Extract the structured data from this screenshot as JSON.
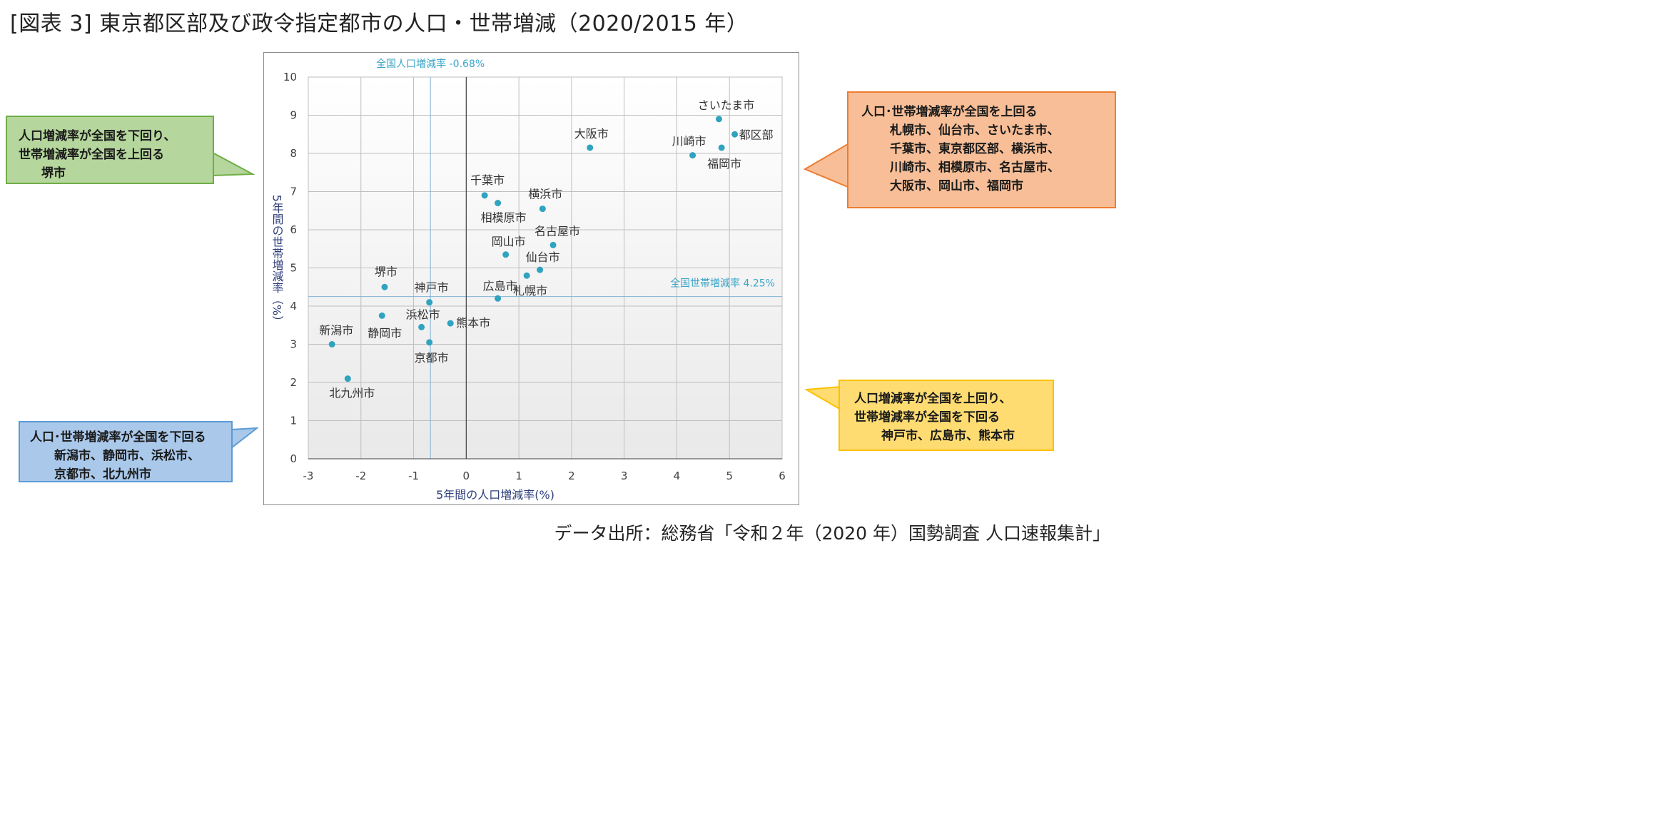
{
  "title": "[図表 3] 東京都区部及び政令指定都市の人口・世帯増減（2020/2015 年）",
  "source": "データ出所：総務省「令和２年（2020 年）国勢調査 人口速報集計」",
  "colors": {
    "marker": "#2fa3c0",
    "refline": "#7fb4d6",
    "reflabel": "#3aa5c8",
    "grid": "#bfbfbf",
    "axis": "#404040",
    "axis_title": "#2e3e7a"
  },
  "callouts": {
    "green": [
      "人口増減率が全国を下回り、",
      "世帯増減率が全国を上回る",
      "堺市"
    ],
    "orange": [
      "人口･世帯増減率が全国を上回る",
      "札幌市、仙台市、さいたま市、",
      "千葉市、東京都区部、横浜市、",
      "川崎市、相模原市、名古屋市、",
      "大阪市、岡山市、福岡市"
    ],
    "blue": [
      "人口･世帯増減率が全国を下回る",
      "新潟市、静岡市、浜松市、",
      "京都市、北九州市"
    ],
    "yellow": [
      "人口増減率が全国を上回り、",
      "世帯増減率が全国を下回る",
      "神戸市、広島市、熊本市"
    ]
  },
  "chart_data": {
    "type": "scatter",
    "title": "",
    "xlabel": "5年間の人口増減率(%)",
    "ylabel": "5年間の世帯増減率（%）",
    "xlim": [
      -3,
      6
    ],
    "ylim": [
      0,
      10
    ],
    "x_ticks": [
      "-3",
      "-2",
      "-1",
      "0",
      "1",
      "2",
      "3",
      "4",
      "5",
      "6"
    ],
    "y_ticks": [
      "0",
      "1",
      "2",
      "3",
      "4",
      "5",
      "6",
      "7",
      "8",
      "9",
      "10"
    ],
    "grid": true,
    "reference_lines": {
      "x": {
        "value": -0.68,
        "label": "全国人口増減率 -0.68%"
      },
      "y": {
        "value": 4.25,
        "label": "全国世帯増減率 4.25%"
      }
    },
    "points": [
      {
        "name": "さいたま市",
        "x": 4.8,
        "y": 8.9
      },
      {
        "name": "都区部",
        "x": 5.1,
        "y": 8.5
      },
      {
        "name": "川崎市",
        "x": 4.3,
        "y": 7.95
      },
      {
        "name": "福岡市",
        "x": 4.85,
        "y": 8.15
      },
      {
        "name": "大阪市",
        "x": 2.35,
        "y": 8.15
      },
      {
        "name": "千葉市",
        "x": 0.35,
        "y": 6.9
      },
      {
        "name": "相模原市",
        "x": 0.6,
        "y": 6.7
      },
      {
        "name": "横浜市",
        "x": 1.45,
        "y": 6.55
      },
      {
        "name": "名古屋市",
        "x": 1.65,
        "y": 5.6
      },
      {
        "name": "岡山市",
        "x": 0.75,
        "y": 5.35
      },
      {
        "name": "仙台市",
        "x": 1.4,
        "y": 4.95
      },
      {
        "name": "札幌市",
        "x": 1.15,
        "y": 4.8
      },
      {
        "name": "広島市",
        "x": 0.6,
        "y": 4.2
      },
      {
        "name": "堺市",
        "x": -1.55,
        "y": 4.5
      },
      {
        "name": "神戸市",
        "x": -0.7,
        "y": 4.1
      },
      {
        "name": "静岡市",
        "x": -1.6,
        "y": 3.75
      },
      {
        "name": "浜松市",
        "x": -0.85,
        "y": 3.45
      },
      {
        "name": "熊本市",
        "x": -0.3,
        "y": 3.55
      },
      {
        "name": "京都市",
        "x": -0.7,
        "y": 3.05
      },
      {
        "name": "新潟市",
        "x": -2.55,
        "y": 3.0
      },
      {
        "name": "北九州市",
        "x": -2.25,
        "y": 2.1
      }
    ]
  }
}
